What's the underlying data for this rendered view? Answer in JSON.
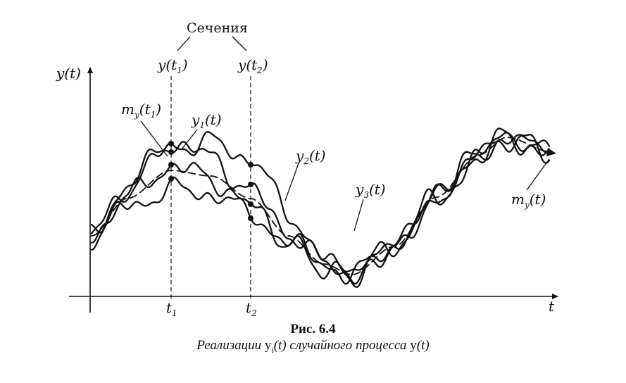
{
  "figure": {
    "number": "Рис. 6.4",
    "caption_parts": {
      "pre": "Реализации ",
      "y1": "y",
      "i": "i",
      "mid": "(t) случайного процесса ",
      "y2": "y",
      "end": "(t)"
    }
  },
  "axes": {
    "y_label": "y(t)",
    "x_label": "t"
  },
  "sections": {
    "title": "Сечения",
    "t1": {
      "name": "y",
      "open": "(",
      "var": "t",
      "sub": "1",
      "close": ")",
      "tick_var": "t",
      "tick_sub": "1"
    },
    "t2": {
      "name": "y",
      "open": "(",
      "var": "t",
      "sub": "2",
      "close": ")",
      "tick_var": "t",
      "tick_sub": "2"
    }
  },
  "curve_labels": {
    "m_t1": {
      "m": "m",
      "sub": "y",
      "rest1": "(",
      "var": "t",
      "vsub": "1",
      "rest2": ")"
    },
    "y1": {
      "y": "y",
      "sub": "1",
      "rest": "(t)"
    },
    "y2": {
      "y": "y",
      "sub": "2",
      "rest": "(t)"
    },
    "y3": {
      "y": "y",
      "sub": "3",
      "rest": "(t)"
    },
    "m_end": {
      "m": "m",
      "sub": "y",
      "rest": "(t)"
    }
  },
  "colors": {
    "ink": "#111111",
    "paper": "#ffffff"
  }
}
